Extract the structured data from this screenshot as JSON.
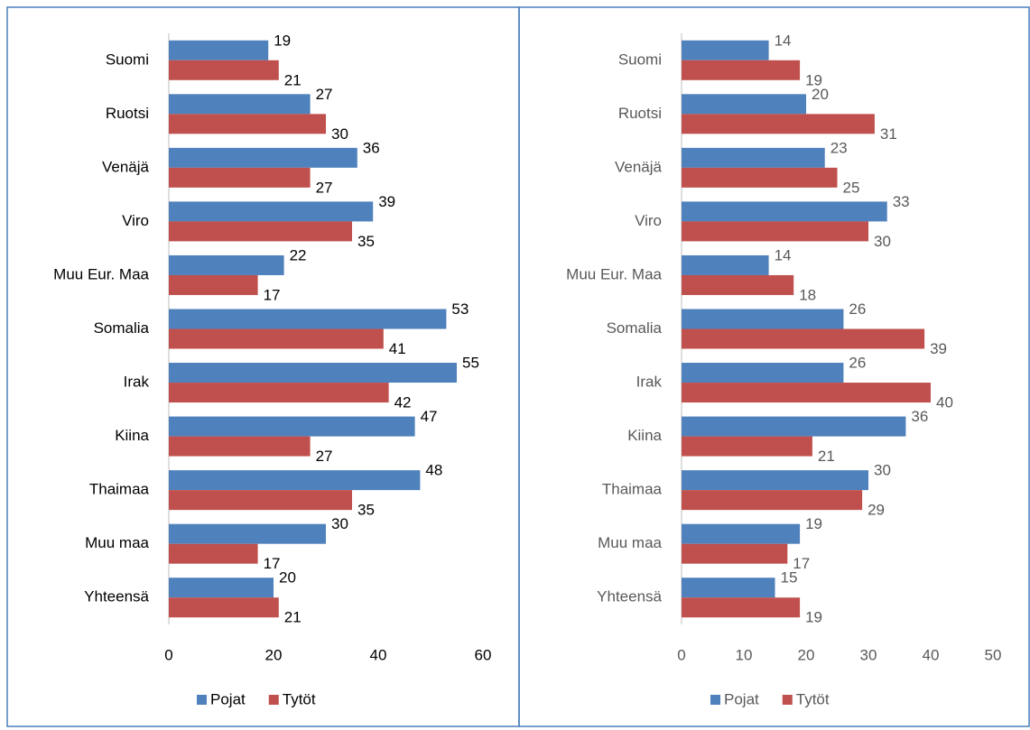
{
  "chart_data": [
    {
      "type": "barh",
      "categories": [
        "Suomi",
        "Ruotsi",
        "Venäjä",
        "Viro",
        "Muu Eur. Maa",
        "Somalia",
        "Irak",
        "Kiina",
        "Thaimaa",
        "Muu maa",
        "Yhteensä"
      ],
      "series": [
        {
          "name": "Pojat",
          "color": "#4f81bd",
          "values": [
            19,
            27,
            36,
            39,
            22,
            53,
            55,
            47,
            48,
            30,
            20
          ]
        },
        {
          "name": "Tytöt",
          "color": "#c0504d",
          "values": [
            21,
            30,
            27,
            35,
            17,
            41,
            42,
            27,
            35,
            17,
            21
          ]
        }
      ],
      "xlim": [
        0,
        60
      ],
      "xticks": [
        0,
        20,
        40,
        60
      ],
      "legend": "bottom",
      "text_color": "#000000"
    },
    {
      "type": "barh",
      "categories": [
        "Suomi",
        "Ruotsi",
        "Venäjä",
        "Viro",
        "Muu Eur. Maa",
        "Somalia",
        "Irak",
        "Kiina",
        "Thaimaa",
        "Muu maa",
        "Yhteensä"
      ],
      "series": [
        {
          "name": "Pojat",
          "color": "#4f81bd",
          "values": [
            14,
            20,
            23,
            33,
            14,
            26,
            26,
            36,
            30,
            19,
            15
          ]
        },
        {
          "name": "Tytöt",
          "color": "#c0504d",
          "values": [
            19,
            31,
            25,
            30,
            18,
            39,
            40,
            21,
            29,
            17,
            19
          ]
        }
      ],
      "xlim": [
        0,
        50
      ],
      "xticks": [
        0,
        10,
        20,
        30,
        40,
        50
      ],
      "legend": "bottom",
      "text_color": "#595959"
    }
  ]
}
